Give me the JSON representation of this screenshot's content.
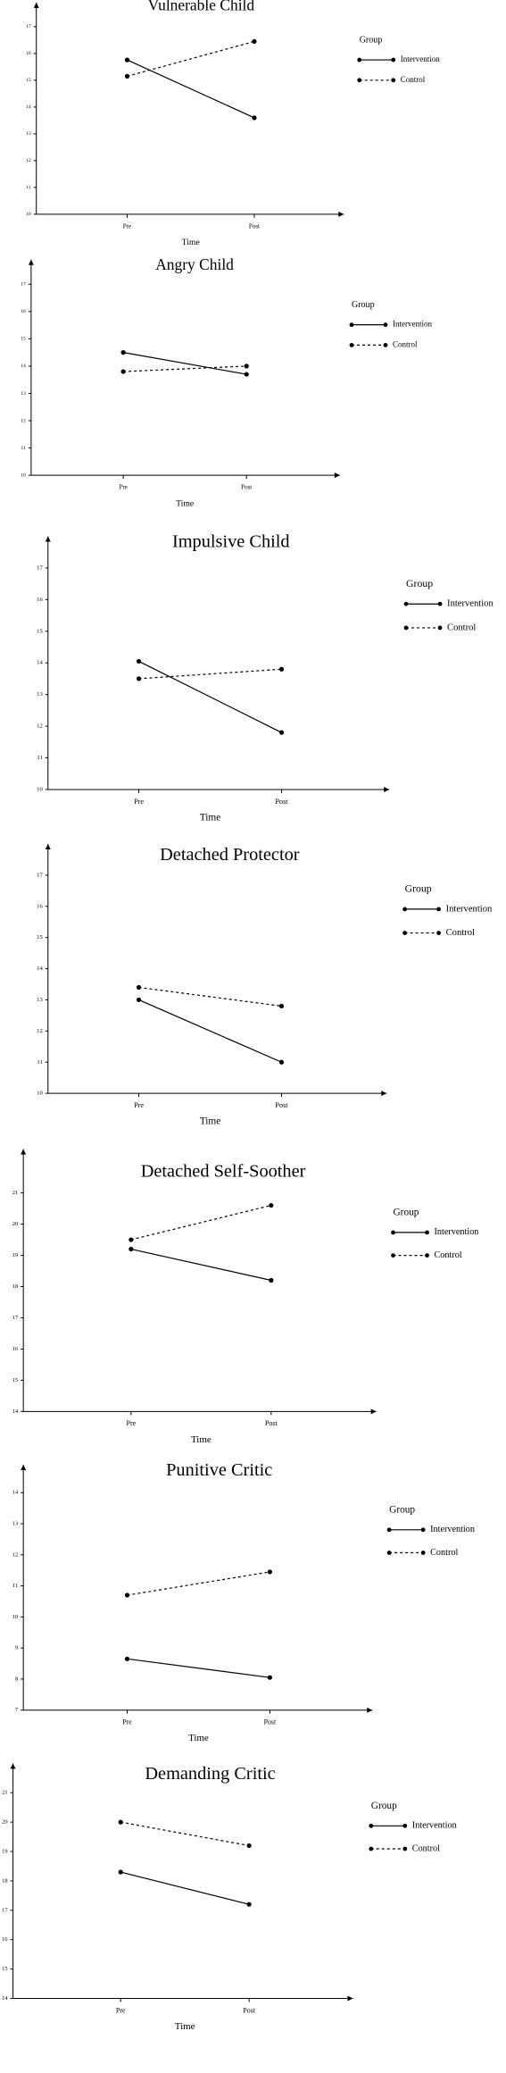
{
  "chart_data": [
    {
      "type": "line",
      "title": "Vulnerable Child",
      "x_label": "Time",
      "legend_title": "Group",
      "categories": [
        "Pre",
        "Post"
      ],
      "ylim": [
        10,
        17.9
      ],
      "yticks": [
        10,
        11,
        12,
        13,
        14,
        15,
        16,
        17
      ],
      "series": [
        {
          "name": "Intervention",
          "color": "#000000",
          "style": "solid",
          "values": [
            15.76,
            13.6
          ]
        },
        {
          "name": "Control",
          "color": "#000000",
          "style": "dashed",
          "values": [
            15.15,
            16.45
          ]
        }
      ]
    },
    {
      "type": "line",
      "title": "Angry Child",
      "x_label": "Time",
      "legend_title": "Group",
      "categories": [
        "Pre",
        "Post"
      ],
      "ylim": [
        10,
        17.9
      ],
      "yticks": [
        10,
        11,
        12,
        13,
        14,
        15,
        16,
        17
      ],
      "series": [
        {
          "name": "Intervention",
          "color": "#000000",
          "style": "solid",
          "values": [
            14.5,
            13.7
          ]
        },
        {
          "name": "Control",
          "color": "#000000",
          "style": "dashed",
          "values": [
            13.8,
            14.0
          ]
        }
      ]
    },
    {
      "type": "line",
      "title": "Impulsive Child",
      "x_label": "Time",
      "legend_title": "Group",
      "categories": [
        "Pre",
        "Post"
      ],
      "ylim": [
        10,
        18
      ],
      "yticks": [
        10,
        11,
        12,
        13,
        14,
        15,
        16,
        17
      ],
      "series": [
        {
          "name": "Intervention",
          "color": "#000000",
          "style": "solid",
          "values": [
            14.05,
            11.8
          ]
        },
        {
          "name": "Control",
          "color": "#000000",
          "style": "dashed",
          "values": [
            13.5,
            13.8
          ]
        }
      ]
    },
    {
      "type": "line",
      "title": "Detached Protector",
      "x_label": "Time",
      "legend_title": "Group",
      "categories": [
        "Pre",
        "Post"
      ],
      "ylim": [
        10,
        18
      ],
      "yticks": [
        10,
        11,
        12,
        13,
        14,
        15,
        16,
        17
      ],
      "series": [
        {
          "name": "Intervention",
          "color": "#000000",
          "style": "solid",
          "values": [
            13.0,
            11.0
          ]
        },
        {
          "name": "Control",
          "color": "#000000",
          "style": "dashed",
          "values": [
            13.4,
            12.8
          ]
        }
      ]
    },
    {
      "type": "line",
      "title": "Detached Self-Soother",
      "x_label": "Time",
      "legend_title": "Group",
      "categories": [
        "Pre",
        "Post"
      ],
      "ylim": [
        14,
        22.4
      ],
      "yticks": [
        14,
        15,
        16,
        17,
        18,
        19,
        20,
        21
      ],
      "series": [
        {
          "name": "Intervention",
          "color": "#000000",
          "style": "solid",
          "values": [
            19.2,
            18.2
          ]
        },
        {
          "name": "Control",
          "color": "#000000",
          "style": "dashed",
          "values": [
            19.5,
            20.6
          ]
        }
      ]
    },
    {
      "type": "line",
      "title": "Punitive Critic",
      "x_label": "Time",
      "legend_title": "Group",
      "categories": [
        "Pre",
        "Post"
      ],
      "ylim": [
        7,
        14.9
      ],
      "yticks": [
        7,
        8,
        9,
        10,
        11,
        12,
        13,
        14
      ],
      "series": [
        {
          "name": "Intervention",
          "color": "#000000",
          "style": "solid",
          "values": [
            8.65,
            8.05
          ]
        },
        {
          "name": "Control",
          "color": "#000000",
          "style": "dashed",
          "values": [
            10.7,
            11.45
          ]
        }
      ]
    },
    {
      "type": "line",
      "title": "Demanding Critic",
      "x_label": "Time",
      "legend_title": "Group",
      "categories": [
        "Pre",
        "Post"
      ],
      "ylim": [
        14,
        22
      ],
      "yticks": [
        14,
        15,
        16,
        17,
        18,
        19,
        20,
        21
      ],
      "series": [
        {
          "name": "Intervention",
          "color": "#000000",
          "style": "solid",
          "values": [
            18.3,
            17.2
          ]
        },
        {
          "name": "Control",
          "color": "#000000",
          "style": "dashed",
          "values": [
            20.0,
            19.2
          ]
        }
      ]
    }
  ]
}
